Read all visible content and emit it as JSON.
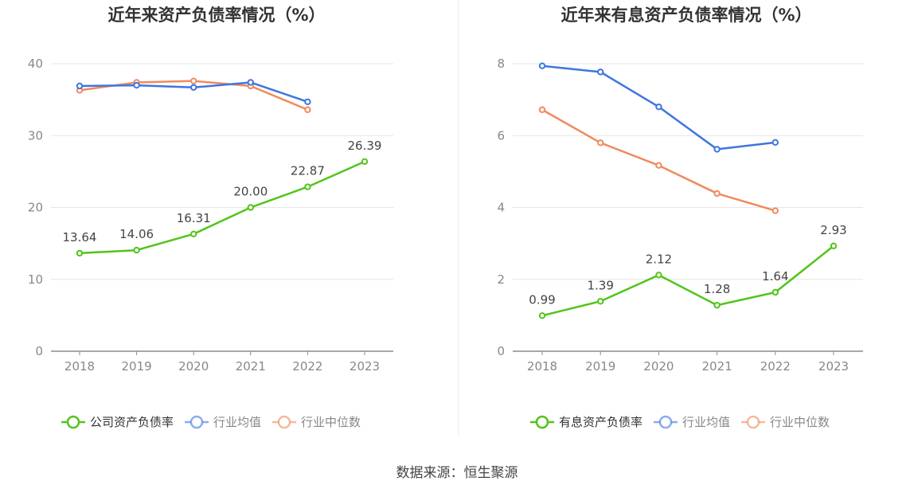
{
  "chart_data": [
    {
      "type": "line",
      "title": "近年来资产负债率情况（%）",
      "categories": [
        "2018",
        "2019",
        "2020",
        "2021",
        "2022",
        "2023"
      ],
      "ylim": [
        0,
        40
      ],
      "yticks": [
        0,
        10,
        20,
        30,
        40
      ],
      "grid": true,
      "legend_position": "bottom",
      "series": [
        {
          "name": "公司资产负债率",
          "color": "#52c41a",
          "values": [
            13.64,
            14.06,
            16.31,
            20.0,
            22.87,
            26.39
          ],
          "labels": [
            "13.64",
            "14.06",
            "16.31",
            "20.00",
            "22.87",
            "26.39"
          ]
        },
        {
          "name": "行业均值",
          "color": "#3f75e0",
          "values": [
            36.9,
            37.0,
            36.7,
            37.4,
            34.7,
            null
          ]
        },
        {
          "name": "行业中位数",
          "color": "#f08a5d",
          "values": [
            36.3,
            37.4,
            37.6,
            36.9,
            33.6,
            null
          ]
        }
      ]
    },
    {
      "type": "line",
      "title": "近年来有息资产负债率情况（%）",
      "categories": [
        "2018",
        "2019",
        "2020",
        "2021",
        "2022",
        "2023"
      ],
      "ylim": [
        0,
        8
      ],
      "yticks": [
        0,
        2,
        4,
        6,
        8
      ],
      "grid": true,
      "legend_position": "bottom",
      "series": [
        {
          "name": "有息资产负债率",
          "color": "#52c41a",
          "values": [
            0.99,
            1.39,
            2.12,
            1.28,
            1.64,
            2.93
          ],
          "labels": [
            "0.99",
            "1.39",
            "2.12",
            "1.28",
            "1.64",
            "2.93"
          ]
        },
        {
          "name": "行业均值",
          "color": "#3f75e0",
          "values": [
            7.94,
            7.77,
            6.8,
            5.62,
            5.81,
            null
          ]
        },
        {
          "name": "行业中位数",
          "color": "#f08a5d",
          "values": [
            6.72,
            5.8,
            5.17,
            4.39,
            3.91,
            null
          ]
        }
      ]
    }
  ],
  "footer": {
    "source": "数据来源：恒生聚源"
  }
}
